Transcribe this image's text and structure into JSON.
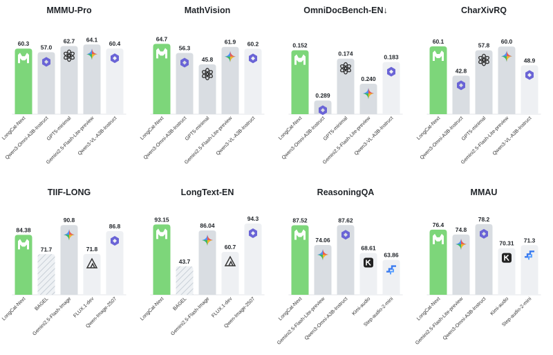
{
  "colors": {
    "highlight": "#7dd67a",
    "gray": "#d9dde2",
    "light": "#eef0f3",
    "hatch": "#d5dbe2",
    "qwen": "#6a64d6",
    "gemini_blue": "#4f8ff2",
    "gemini_red": "#ee5a4f",
    "gemini_yellow": "#f4b528",
    "gemini_green": "#3fb95e"
  },
  "chart_data": [
    {
      "type": "bar",
      "title": "MMMU-Pro",
      "categories": [
        "LongCat-Next",
        "Qwen3-Omni-A3B-Instruct",
        "GPT5-minimal",
        "Gemini2.5-Flash-Lite-preview",
        "Qwen3-VL-A3B-Instruct"
      ],
      "values": [
        60.3,
        57.0,
        62.7,
        64.1,
        60.4
      ],
      "labels": [
        "60.3",
        "57.0",
        "62.7",
        "64.1",
        "60.4"
      ],
      "icons": [
        "longcat-icon",
        "qwen-icon",
        "openai-icon",
        "gemini-icon",
        "qwen-icon"
      ],
      "styles": [
        "highlight",
        "gray",
        "gray",
        "gray",
        "light"
      ],
      "ylim": [
        0,
        70
      ]
    },
    {
      "type": "bar",
      "title": "MathVision",
      "categories": [
        "LongCat-Next",
        "Qwen3-Omni-A3B-Instruct",
        "GPT5-minimal",
        "Gemini2.5-Flash-Lite-preview",
        "Qwen3-VL-A3B-Instruct"
      ],
      "values": [
        64.7,
        56.3,
        45.8,
        61.9,
        60.2
      ],
      "labels": [
        "64.7",
        "56.3",
        "45.8",
        "61.9",
        "60.2"
      ],
      "icons": [
        "longcat-icon",
        "qwen-icon",
        "openai-icon",
        "gemini-icon",
        "qwen-icon"
      ],
      "styles": [
        "highlight",
        "gray",
        "gray",
        "gray",
        "light"
      ],
      "ylim": [
        0,
        70
      ]
    },
    {
      "type": "bar",
      "title": "OmniDocBench-EN↓",
      "categories": [
        "LongCat-Next",
        "Qwen3-Omni-A3B-Instruct",
        "GPT5-minimal",
        "Gemini2.5-Flash-Lite-preview",
        "Qwen3-VL-A3B-Instruct"
      ],
      "values": [
        0.152,
        0.289,
        0.174,
        0.24,
        0.183
      ],
      "labels": [
        "0.152",
        "0.289",
        "0.174",
        "0.240",
        "0.183"
      ],
      "icons": [
        "longcat-icon",
        "qwen-icon",
        "openai-icon",
        "gemini-icon",
        "qwen-icon"
      ],
      "styles": [
        "highlight",
        "gray",
        "gray",
        "gray",
        "light"
      ],
      "ylim": [
        0.12,
        0.32
      ],
      "inverted": true
    },
    {
      "type": "bar",
      "title": "CharXivRQ",
      "categories": [
        "LongCat-Next",
        "Qwen3-Omni-A3B-Instruct",
        "GPT5-minimal",
        "Gemini2.5-Flash-Lite-preview",
        "Qwen3-VL-A3B-Instruct"
      ],
      "values": [
        60.1,
        42.8,
        57.8,
        60.0,
        48.9
      ],
      "labels": [
        "60.1",
        "42.8",
        "57.8",
        "60.0",
        "48.9"
      ],
      "icons": [
        "longcat-icon",
        "qwen-icon",
        "openai-icon",
        "gemini-icon",
        "qwen-icon"
      ],
      "styles": [
        "highlight",
        "gray",
        "gray",
        "gray",
        "light"
      ],
      "ylim": [
        20,
        65
      ]
    },
    {
      "type": "bar",
      "title": "TIIF-LONG",
      "categories": [
        "LongCat-Next",
        "BAGEL",
        "Gemini2.5-Flash-Image",
        "FLUX.1-dev",
        "Qwen-Image-2507"
      ],
      "values": [
        84.38,
        71.7,
        90.8,
        71.8,
        86.8
      ],
      "labels": [
        "84.38",
        "71.7",
        "90.8",
        "71.8",
        "86.8"
      ],
      "icons": [
        "longcat-icon",
        "",
        "gemini-icon",
        "flux-icon",
        "qwen-icon"
      ],
      "styles": [
        "highlight",
        "hatch",
        "gray",
        "light",
        "light"
      ],
      "ylim": [
        45,
        95
      ]
    },
    {
      "type": "bar",
      "title": "LongText-EN",
      "categories": [
        "LongCat-Next",
        "BAGEL",
        "Gemini2.5-Flash-Image",
        "FLUX.1-dev",
        "Qwen-Image-2507"
      ],
      "values": [
        93.15,
        43.7,
        86.04,
        60.7,
        94.3
      ],
      "labels": [
        "93.15",
        "43.7",
        "86.04",
        "60.7",
        "94.3"
      ],
      "icons": [
        "longcat-icon",
        "",
        "gemini-icon",
        "flux-icon",
        "qwen-icon"
      ],
      "styles": [
        "highlight",
        "hatch",
        "gray",
        "light",
        "light"
      ],
      "ylim": [
        10,
        100
      ]
    },
    {
      "type": "bar",
      "title": "ReasoningQA",
      "categories": [
        "LongCat-Next",
        "Gemini2.5-Flash-Lite-preview",
        "Qwen3-Omni-A3B-Instruct",
        "Kimi-audio",
        "Step-audio-2-mini"
      ],
      "values": [
        87.52,
        74.06,
        87.62,
        68.61,
        63.86
      ],
      "labels": [
        "87.52",
        "74.06",
        "87.62",
        "68.61",
        "63.86"
      ],
      "icons": [
        "longcat-icon",
        "gemini-icon",
        "qwen-icon",
        "kimi-icon",
        "step-icon"
      ],
      "styles": [
        "highlight",
        "gray",
        "gray",
        "light",
        "light"
      ],
      "ylim": [
        40,
        92
      ]
    },
    {
      "type": "bar",
      "title": "MMAU",
      "categories": [
        "LongCat-Next",
        "Gemini2.5-Flash-Lite-preview",
        "Qwen3-Omni-A3B-Instruct",
        "Kimi-audio",
        "Step-audio-2-mini"
      ],
      "values": [
        76.4,
        74.8,
        78.2,
        70.31,
        71.3
      ],
      "labels": [
        "76.4",
        "74.8",
        "78.2",
        "70.31",
        "71.3"
      ],
      "icons": [
        "longcat-icon",
        "gemini-icon",
        "qwen-icon",
        "kimi-icon",
        "step-icon"
      ],
      "styles": [
        "highlight",
        "gray",
        "gray",
        "light",
        "light"
      ],
      "ylim": [
        55,
        80
      ]
    }
  ]
}
